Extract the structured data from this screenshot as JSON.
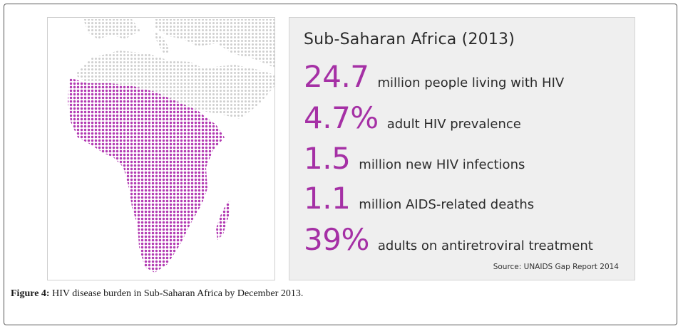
{
  "figure": {
    "stats": {
      "title": "Sub-Saharan Africa (2013)",
      "items": [
        {
          "value": "24.7",
          "label": "million people living with HIV"
        },
        {
          "value": "4.7%",
          "label": "adult HIV prevalence"
        },
        {
          "value": "1.5",
          "label": "million new HIV infections"
        },
        {
          "value": "1.1",
          "label": "million AIDS-related deaths"
        },
        {
          "value": "39%",
          "label": "adults on antiretroviral treatment"
        }
      ],
      "source": "Source: UNAIDS Gap Report 2014"
    },
    "caption": {
      "label": "Figure 4:",
      "text": "HIV disease burden in Sub-Saharan Africa by December 2013."
    },
    "colors": {
      "highlight": "#a530a5",
      "map_grey": "#d6d6d6",
      "map_purple": "#b23ab2",
      "panel_bg": "#efefef"
    }
  }
}
